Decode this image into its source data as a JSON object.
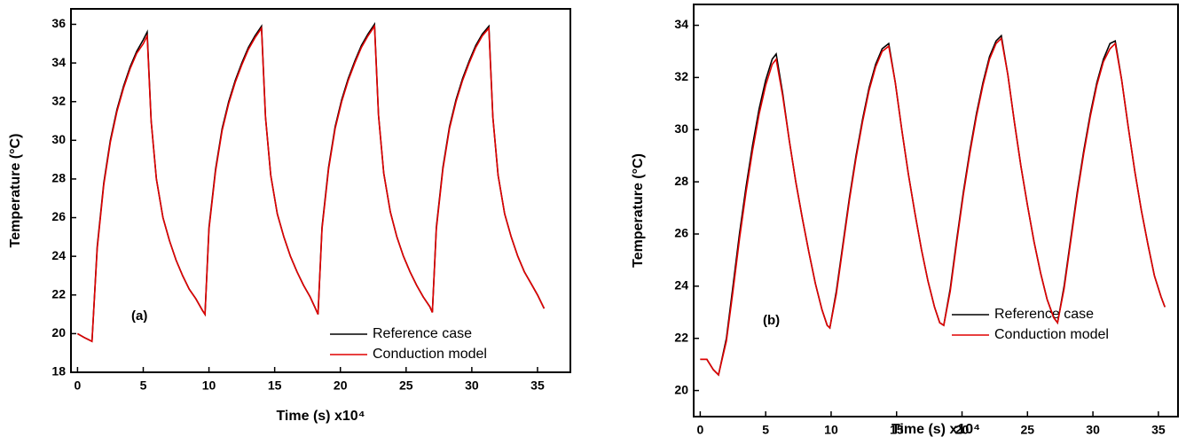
{
  "chart_data": [
    {
      "type": "line",
      "xlabel": "Time (s) x10⁴",
      "ylabel": "Temperature (°C)",
      "annotations": [
        "(a)"
      ],
      "legend": "lower right",
      "xlim": [
        -0.5,
        37.5
      ],
      "ylim": [
        18,
        36.8
      ],
      "xticks": [
        0,
        5,
        10,
        15,
        20,
        25,
        30,
        35
      ],
      "yticks": [
        18,
        20,
        22,
        24,
        26,
        28,
        30,
        32,
        34,
        36
      ],
      "x": [
        0,
        0.5,
        1.1,
        1.5,
        2.0,
        2.5,
        3.0,
        3.5,
        4.0,
        4.5,
        5.0,
        5.3,
        5.6,
        6.0,
        6.5,
        7.0,
        7.5,
        8.0,
        8.5,
        9.0,
        9.5,
        9.7,
        10.0,
        10.5,
        11.0,
        11.5,
        12.0,
        12.5,
        13.0,
        13.5,
        14.0,
        14.3,
        14.7,
        15.2,
        15.7,
        16.2,
        16.7,
        17.2,
        17.7,
        18.1,
        18.3,
        18.6,
        19.1,
        19.6,
        20.1,
        20.6,
        21.1,
        21.6,
        22.1,
        22.6,
        22.9,
        23.3,
        23.8,
        24.3,
        24.8,
        25.3,
        25.8,
        26.3,
        26.8,
        27.0,
        27.3,
        27.8,
        28.3,
        28.8,
        29.3,
        29.8,
        30.3,
        30.8,
        31.3,
        31.6,
        32.0,
        32.5,
        33.0,
        33.5,
        34.0,
        34.5,
        35.0,
        35.5
      ],
      "series": [
        {
          "name": "Reference case",
          "color": "#000000",
          "values": [
            20.0,
            19.8,
            19.6,
            24.5,
            27.8,
            30.0,
            31.6,
            32.8,
            33.8,
            34.6,
            35.2,
            35.6,
            31.0,
            28.0,
            26.0,
            24.8,
            23.8,
            23.0,
            22.3,
            21.8,
            21.2,
            21.0,
            25.5,
            28.5,
            30.6,
            32.0,
            33.1,
            34.0,
            34.8,
            35.4,
            35.9,
            31.2,
            28.2,
            26.2,
            25.0,
            24.0,
            23.2,
            22.5,
            21.9,
            21.3,
            21.0,
            25.5,
            28.6,
            30.7,
            32.1,
            33.2,
            34.1,
            34.9,
            35.5,
            36.0,
            31.3,
            28.3,
            26.3,
            25.0,
            24.0,
            23.2,
            22.5,
            21.9,
            21.4,
            21.1,
            25.5,
            28.6,
            30.7,
            32.1,
            33.2,
            34.1,
            34.9,
            35.5,
            35.9,
            31.2,
            28.2,
            26.2,
            25.0,
            24.0,
            23.2,
            22.6,
            22.0,
            21.3
          ]
        },
        {
          "name": "Conduction model",
          "color": "#e00000",
          "values": [
            20.0,
            19.8,
            19.6,
            24.4,
            27.7,
            29.9,
            31.5,
            32.7,
            33.7,
            34.5,
            35.0,
            35.4,
            31.0,
            28.0,
            26.0,
            24.8,
            23.8,
            23.0,
            22.3,
            21.8,
            21.2,
            21.0,
            25.4,
            28.4,
            30.5,
            31.9,
            33.0,
            33.9,
            34.7,
            35.3,
            35.8,
            31.2,
            28.2,
            26.2,
            25.0,
            24.0,
            23.2,
            22.5,
            21.9,
            21.3,
            21.0,
            25.4,
            28.5,
            30.6,
            32.0,
            33.1,
            34.0,
            34.8,
            35.4,
            35.9,
            31.3,
            28.3,
            26.3,
            25.0,
            24.0,
            23.2,
            22.5,
            21.9,
            21.4,
            21.1,
            25.4,
            28.5,
            30.6,
            32.0,
            33.1,
            34.0,
            34.8,
            35.4,
            35.8,
            31.2,
            28.2,
            26.2,
            25.0,
            24.0,
            23.2,
            22.6,
            22.0,
            21.3
          ]
        }
      ]
    },
    {
      "type": "line",
      "xlabel": "Time (s) x10⁴",
      "ylabel": "Temperature (°C)",
      "annotations": [
        "(b)"
      ],
      "legend": "lower right",
      "xlim": [
        -0.5,
        36.5
      ],
      "ylim": [
        19,
        34.8
      ],
      "xticks": [
        0,
        5,
        10,
        15,
        20,
        25,
        30,
        35
      ],
      "yticks": [
        20,
        22,
        24,
        26,
        28,
        30,
        32,
        34
      ],
      "x": [
        0,
        0.5,
        1.0,
        1.4,
        2.0,
        2.5,
        3.0,
        3.5,
        4.0,
        4.5,
        5.0,
        5.5,
        5.8,
        6.3,
        6.8,
        7.3,
        7.8,
        8.3,
        8.8,
        9.3,
        9.7,
        9.9,
        10.4,
        10.9,
        11.4,
        11.9,
        12.4,
        12.9,
        13.4,
        13.9,
        14.4,
        14.9,
        15.4,
        15.9,
        16.4,
        16.9,
        17.4,
        17.9,
        18.3,
        18.6,
        19.1,
        19.6,
        20.1,
        20.6,
        21.1,
        21.6,
        22.1,
        22.6,
        23.0,
        23.5,
        24.0,
        24.5,
        25.0,
        25.5,
        26.0,
        26.5,
        27.0,
        27.3,
        27.8,
        28.3,
        28.8,
        29.3,
        29.8,
        30.3,
        30.8,
        31.3,
        31.7,
        32.2,
        32.7,
        33.2,
        33.7,
        34.2,
        34.7,
        35.2,
        35.5
      ],
      "series": [
        {
          "name": "Reference case",
          "color": "#000000",
          "values": [
            21.2,
            21.2,
            20.8,
            20.6,
            22.0,
            24.0,
            26.0,
            27.8,
            29.4,
            30.8,
            31.9,
            32.7,
            32.9,
            31.4,
            29.6,
            28.0,
            26.6,
            25.3,
            24.1,
            23.1,
            22.5,
            22.4,
            23.8,
            25.6,
            27.4,
            29.0,
            30.4,
            31.6,
            32.5,
            33.1,
            33.3,
            31.8,
            30.0,
            28.3,
            26.8,
            25.4,
            24.2,
            23.2,
            22.6,
            22.5,
            23.9,
            25.8,
            27.6,
            29.2,
            30.6,
            31.8,
            32.8,
            33.4,
            33.6,
            32.1,
            30.3,
            28.6,
            27.1,
            25.7,
            24.5,
            23.5,
            22.8,
            22.6,
            24.0,
            25.8,
            27.6,
            29.2,
            30.6,
            31.8,
            32.7,
            33.3,
            33.4,
            31.9,
            30.1,
            28.4,
            26.9,
            25.6,
            24.4,
            23.6,
            23.2
          ]
        },
        {
          "name": "Conduction model",
          "color": "#e00000",
          "values": [
            21.2,
            21.2,
            20.8,
            20.6,
            21.9,
            23.8,
            25.8,
            27.6,
            29.2,
            30.6,
            31.7,
            32.5,
            32.7,
            31.3,
            29.6,
            28.0,
            26.6,
            25.3,
            24.1,
            23.1,
            22.5,
            22.4,
            23.7,
            25.5,
            27.3,
            28.9,
            30.3,
            31.5,
            32.4,
            33.0,
            33.2,
            31.8,
            30.0,
            28.3,
            26.8,
            25.4,
            24.2,
            23.2,
            22.6,
            22.5,
            23.8,
            25.7,
            27.5,
            29.1,
            30.5,
            31.7,
            32.7,
            33.3,
            33.5,
            32.1,
            30.3,
            28.6,
            27.1,
            25.7,
            24.5,
            23.5,
            22.8,
            22.6,
            23.9,
            25.7,
            27.5,
            29.1,
            30.5,
            31.7,
            32.6,
            33.1,
            33.3,
            31.9,
            30.1,
            28.4,
            26.9,
            25.6,
            24.4,
            23.6,
            23.2
          ]
        }
      ]
    }
  ]
}
